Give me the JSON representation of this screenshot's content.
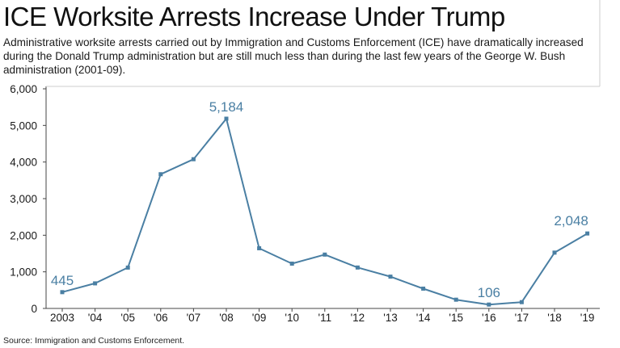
{
  "header": {
    "title": "ICE Worksite Arrests Increase Under Trump",
    "subtitle": "Administrative worksite arrests carried out by Immigration and Customs Enforcement (ICE) have dramatically increased during the Donald Trump administration but are still much less than during the last few years of the George W. Bush administration (2001-09)."
  },
  "footer": {
    "source": "Source: Immigration and Customs Enforcement."
  },
  "colors": {
    "line": "#4a7fa3",
    "axis": "#444444",
    "label": "#4a7fa3"
  },
  "chart_data": {
    "type": "line",
    "title": "ICE Worksite Arrests Increase Under Trump",
    "xlabel": "",
    "ylabel": "",
    "categories": [
      "2003",
      "'04",
      "'05",
      "'06",
      "'07",
      "'08",
      "'09",
      "'10",
      "'11",
      "'12",
      "'13",
      "'14",
      "'15",
      "'16",
      "'17",
      "'18",
      "'19"
    ],
    "values": [
      445,
      685,
      1116,
      3667,
      4077,
      5184,
      1644,
      1224,
      1471,
      1118,
      869,
      541,
      239,
      106,
      172,
      1525,
      2048
    ],
    "ylim": [
      0,
      6000
    ],
    "yticks": [
      0,
      1000,
      2000,
      3000,
      4000,
      5000,
      6000
    ],
    "ytick_labels": [
      "0",
      "1,000",
      "2,000",
      "3,000",
      "4,000",
      "5,000",
      "6,000"
    ],
    "grid": false,
    "annotations": [
      {
        "index": 0,
        "text": "445"
      },
      {
        "index": 5,
        "text": "5,184"
      },
      {
        "index": 13,
        "text": "106"
      },
      {
        "index": 16,
        "text": "2,048"
      }
    ]
  }
}
